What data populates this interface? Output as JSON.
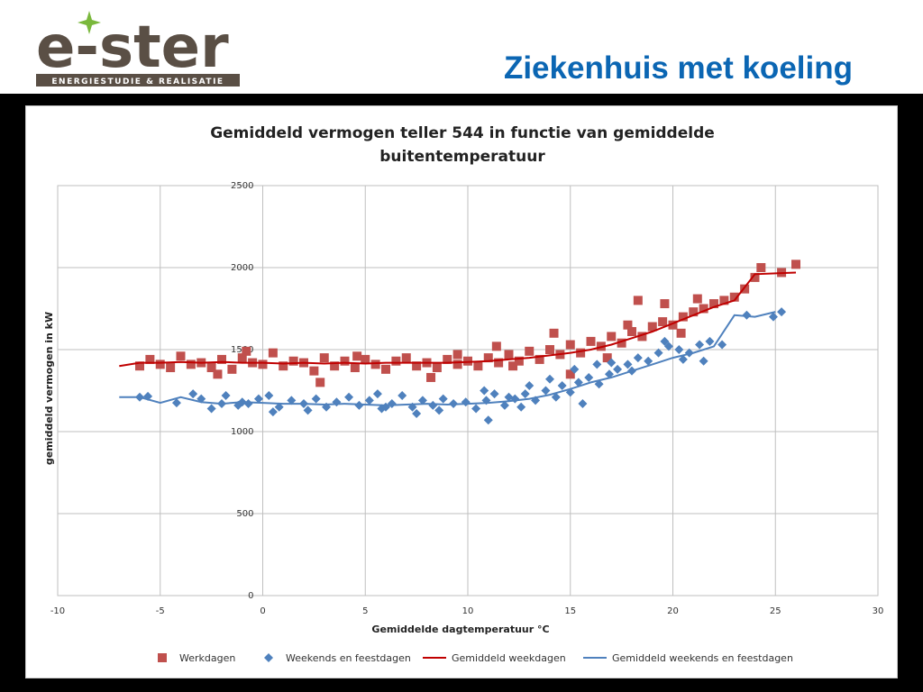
{
  "header": {
    "slide_title": "Ziekenhuis met koeling",
    "logo_text": "e-ster",
    "logo_tagline": "ENERGIESTUDIE & REALISATIE"
  },
  "colors": {
    "title_blue": "#0b66b3",
    "logo_brown": "#5a4f45",
    "logo_green": "#7ab83c",
    "werkdagen": "#c0504d",
    "weekend": "#4f81bd",
    "avg_week": "#c00000",
    "avg_weekend": "#4f81bd"
  },
  "chart_data": {
    "type": "scatter",
    "title_line1": "Gemiddeld vermogen teller 544 in functie van gemiddelde",
    "title_line2": "buitentemperatuur",
    "xlabel": "Gemiddelde dagtemperatuur °C",
    "ylabel": "gemiddeld vermogen in kW",
    "xlim": [
      -10,
      30
    ],
    "ylim": [
      0,
      2500
    ],
    "xticks": [
      -10,
      -5,
      0,
      5,
      10,
      15,
      20,
      25,
      30
    ],
    "yticks": [
      0,
      500,
      1000,
      1500,
      2000,
      2500
    ],
    "grid": true,
    "legend_position": "bottom",
    "series": [
      {
        "name": "Werkdagen",
        "kind": "scatter",
        "marker": "square",
        "color": "#c0504d",
        "points": [
          [
            -6.0,
            1400
          ],
          [
            -5.5,
            1440
          ],
          [
            -5.0,
            1410
          ],
          [
            -4.5,
            1390
          ],
          [
            -4.0,
            1460
          ],
          [
            -3.5,
            1410
          ],
          [
            -3.0,
            1420
          ],
          [
            -2.5,
            1390
          ],
          [
            -2.0,
            1440
          ],
          [
            -1.5,
            1380
          ],
          [
            -1.0,
            1450
          ],
          [
            -0.5,
            1420
          ],
          [
            0.0,
            1410
          ],
          [
            0.5,
            1480
          ],
          [
            1.0,
            1400
          ],
          [
            1.5,
            1430
          ],
          [
            2.0,
            1420
          ],
          [
            2.5,
            1370
          ],
          [
            3.0,
            1450
          ],
          [
            3.5,
            1400
          ],
          [
            4.0,
            1430
          ],
          [
            4.5,
            1390
          ],
          [
            5.0,
            1440
          ],
          [
            5.5,
            1410
          ],
          [
            6.0,
            1380
          ],
          [
            6.5,
            1430
          ],
          [
            7.0,
            1450
          ],
          [
            7.5,
            1400
          ],
          [
            8.0,
            1420
          ],
          [
            8.5,
            1390
          ],
          [
            9.0,
            1440
          ],
          [
            9.5,
            1410
          ],
          [
            10.0,
            1430
          ],
          [
            10.5,
            1400
          ],
          [
            11.0,
            1450
          ],
          [
            11.5,
            1420
          ],
          [
            12.0,
            1470
          ],
          [
            12.5,
            1430
          ],
          [
            13.0,
            1490
          ],
          [
            13.5,
            1440
          ],
          [
            14.0,
            1500
          ],
          [
            14.5,
            1470
          ],
          [
            15.0,
            1530
          ],
          [
            15.5,
            1480
          ],
          [
            16.0,
            1550
          ],
          [
            16.5,
            1520
          ],
          [
            17.0,
            1580
          ],
          [
            17.5,
            1540
          ],
          [
            18.0,
            1610
          ],
          [
            18.5,
            1580
          ],
          [
            19.0,
            1640
          ],
          [
            19.5,
            1670
          ],
          [
            20.0,
            1650
          ],
          [
            20.5,
            1700
          ],
          [
            21.0,
            1730
          ],
          [
            21.5,
            1750
          ],
          [
            22.0,
            1780
          ],
          [
            22.5,
            1800
          ],
          [
            23.0,
            1820
          ],
          [
            23.5,
            1870
          ],
          [
            24.0,
            1940
          ],
          [
            24.3,
            2000
          ],
          [
            25.3,
            1970
          ],
          [
            26.0,
            2020
          ],
          [
            18.3,
            1800
          ],
          [
            21.2,
            1810
          ],
          [
            15.0,
            1350
          ],
          [
            17.8,
            1650
          ],
          [
            19.6,
            1780
          ],
          [
            20.4,
            1600
          ],
          [
            -2.2,
            1350
          ],
          [
            2.8,
            1300
          ],
          [
            8.2,
            1330
          ],
          [
            12.2,
            1400
          ],
          [
            16.8,
            1450
          ],
          [
            11.4,
            1520
          ],
          [
            9.5,
            1470
          ],
          [
            4.6,
            1460
          ],
          [
            -0.8,
            1490
          ],
          [
            14.2,
            1600
          ]
        ]
      },
      {
        "name": "Weekends en feestdagen",
        "kind": "scatter",
        "marker": "diamond",
        "color": "#4f81bd",
        "points": [
          [
            -6.0,
            1210
          ],
          [
            -5.6,
            1215
          ],
          [
            -4.2,
            1175
          ],
          [
            -3.4,
            1230
          ],
          [
            -3.0,
            1200
          ],
          [
            -2.5,
            1140
          ],
          [
            -2.0,
            1170
          ],
          [
            -1.8,
            1220
          ],
          [
            -1.2,
            1160
          ],
          [
            -0.7,
            1170
          ],
          [
            -0.2,
            1200
          ],
          [
            0.3,
            1220
          ],
          [
            0.8,
            1150
          ],
          [
            1.4,
            1190
          ],
          [
            2.0,
            1170
          ],
          [
            2.6,
            1200
          ],
          [
            3.1,
            1150
          ],
          [
            3.6,
            1180
          ],
          [
            4.2,
            1210
          ],
          [
            4.7,
            1160
          ],
          [
            5.2,
            1190
          ],
          [
            5.8,
            1140
          ],
          [
            6.3,
            1170
          ],
          [
            6.8,
            1220
          ],
          [
            7.3,
            1150
          ],
          [
            7.8,
            1190
          ],
          [
            8.3,
            1160
          ],
          [
            8.8,
            1200
          ],
          [
            9.3,
            1170
          ],
          [
            9.9,
            1180
          ],
          [
            10.4,
            1140
          ],
          [
            10.9,
            1190
          ],
          [
            11.3,
            1230
          ],
          [
            11.8,
            1160
          ],
          [
            12.3,
            1200
          ],
          [
            12.8,
            1230
          ],
          [
            13.3,
            1190
          ],
          [
            13.8,
            1250
          ],
          [
            14.3,
            1210
          ],
          [
            14.6,
            1280
          ],
          [
            15.0,
            1240
          ],
          [
            15.4,
            1300
          ],
          [
            15.9,
            1330
          ],
          [
            16.4,
            1290
          ],
          [
            16.9,
            1350
          ],
          [
            17.3,
            1380
          ],
          [
            17.8,
            1410
          ],
          [
            18.3,
            1450
          ],
          [
            18.8,
            1430
          ],
          [
            19.3,
            1480
          ],
          [
            19.8,
            1520
          ],
          [
            20.3,
            1500
          ],
          [
            20.8,
            1480
          ],
          [
            21.3,
            1530
          ],
          [
            21.8,
            1550
          ],
          [
            22.4,
            1530
          ],
          [
            23.6,
            1710
          ],
          [
            24.9,
            1700
          ],
          [
            25.3,
            1730
          ],
          [
            11.0,
            1070
          ],
          [
            14.0,
            1320
          ],
          [
            15.6,
            1170
          ],
          [
            16.3,
            1410
          ],
          [
            17.0,
            1420
          ],
          [
            13.0,
            1280
          ],
          [
            12.0,
            1210
          ],
          [
            10.8,
            1250
          ],
          [
            19.6,
            1550
          ],
          [
            18.0,
            1370
          ],
          [
            20.5,
            1440
          ],
          [
            21.5,
            1430
          ],
          [
            2.2,
            1130
          ],
          [
            7.5,
            1110
          ],
          [
            -1.0,
            1180
          ],
          [
            0.5,
            1120
          ],
          [
            6.0,
            1150
          ],
          [
            15.2,
            1380
          ],
          [
            12.6,
            1150
          ],
          [
            8.6,
            1130
          ],
          [
            5.6,
            1230
          ]
        ]
      },
      {
        "name": "Gemiddeld weekdagen",
        "kind": "line",
        "color": "#c00000",
        "points": [
          [
            -7,
            1400
          ],
          [
            -6,
            1420
          ],
          [
            -5,
            1420
          ],
          [
            -4,
            1425
          ],
          [
            -3,
            1420
          ],
          [
            -2,
            1425
          ],
          [
            -1,
            1420
          ],
          [
            0,
            1420
          ],
          [
            1,
            1415
          ],
          [
            2,
            1420
          ],
          [
            3,
            1415
          ],
          [
            4,
            1420
          ],
          [
            5,
            1415
          ],
          [
            6,
            1420
          ],
          [
            7,
            1420
          ],
          [
            8,
            1420
          ],
          [
            9,
            1420
          ],
          [
            10,
            1425
          ],
          [
            11,
            1430
          ],
          [
            12,
            1440
          ],
          [
            13,
            1450
          ],
          [
            14,
            1465
          ],
          [
            15,
            1480
          ],
          [
            16,
            1500
          ],
          [
            17,
            1530
          ],
          [
            18,
            1570
          ],
          [
            19,
            1610
          ],
          [
            20,
            1660
          ],
          [
            21,
            1710
          ],
          [
            22,
            1760
          ],
          [
            23,
            1800
          ],
          [
            24,
            1960
          ],
          [
            25,
            1965
          ],
          [
            26,
            1970
          ]
        ]
      },
      {
        "name": "Gemiddeld weekends en feestdagen",
        "kind": "line",
        "color": "#4f81bd",
        "points": [
          [
            -7,
            1210
          ],
          [
            -6,
            1210
          ],
          [
            -5,
            1175
          ],
          [
            -4,
            1210
          ],
          [
            -3,
            1180
          ],
          [
            -2,
            1170
          ],
          [
            -1,
            1180
          ],
          [
            0,
            1175
          ],
          [
            1,
            1170
          ],
          [
            2,
            1170
          ],
          [
            3,
            1165
          ],
          [
            4,
            1170
          ],
          [
            5,
            1165
          ],
          [
            6,
            1160
          ],
          [
            7,
            1165
          ],
          [
            8,
            1170
          ],
          [
            9,
            1165
          ],
          [
            10,
            1170
          ],
          [
            11,
            1175
          ],
          [
            12,
            1185
          ],
          [
            13,
            1200
          ],
          [
            14,
            1225
          ],
          [
            15,
            1260
          ],
          [
            16,
            1300
          ],
          [
            17,
            1330
          ],
          [
            18,
            1370
          ],
          [
            19,
            1410
          ],
          [
            20,
            1450
          ],
          [
            21,
            1480
          ],
          [
            22,
            1520
          ],
          [
            23,
            1710
          ],
          [
            24,
            1700
          ],
          [
            25,
            1730
          ]
        ]
      }
    ]
  }
}
